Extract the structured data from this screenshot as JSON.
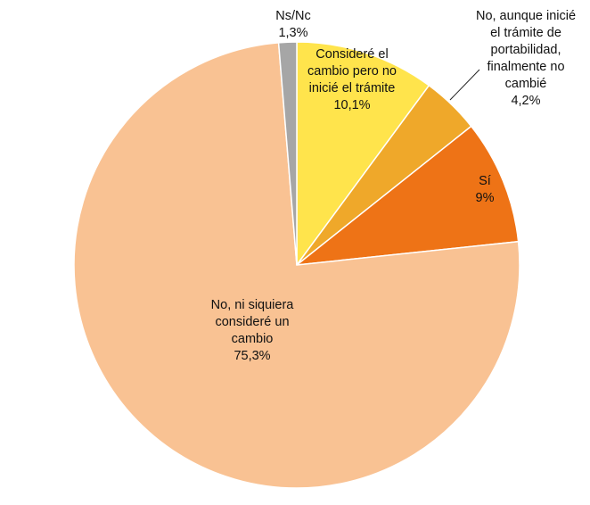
{
  "chart_data": {
    "type": "pie",
    "start_angle_deg": 0,
    "direction": "clockwise",
    "slices": [
      {
        "lines": [
          "Consideré el",
          "cambio pero no",
          "inicié el trámite",
          "10,1%"
        ],
        "value": 10.1,
        "color": "#FFE44C"
      },
      {
        "lines": [
          "No, aunque inicié",
          "el trámite de",
          "portabilidad,",
          "finalmente no",
          "cambié",
          "4,2%"
        ],
        "value": 4.2,
        "color": "#EFA82A"
      },
      {
        "lines": [
          "Sí",
          "9%"
        ],
        "value": 9.0,
        "color": "#EE7316"
      },
      {
        "lines": [
          "No, ni siquiera",
          "consideré un",
          "cambio",
          "75,3%"
        ],
        "value": 75.3,
        "color": "#F9C293"
      },
      {
        "lines": [
          "Ns/Nc",
          "1,3%"
        ],
        "value": 1.3,
        "color": "#A6A6A6"
      }
    ]
  }
}
